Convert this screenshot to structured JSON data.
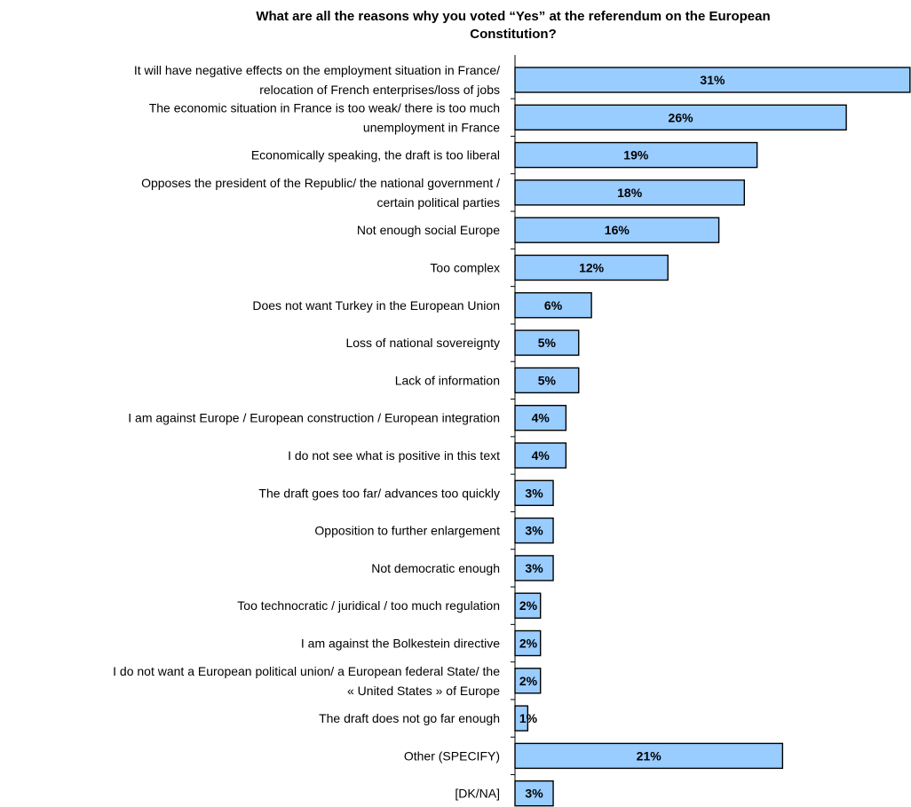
{
  "chart_data": {
    "type": "bar",
    "orientation": "horizontal",
    "title": "What are all the reasons why you voted “Yes” at the referendum on the European Constitution?",
    "title_lines": [
      "What are all the reasons why you voted “Yes” at the referendum on the European",
      "Constitution?"
    ],
    "categories": [
      [
        "It will have negative effects on the employment situation in France/",
        "relocation of French enterprises/loss of jobs"
      ],
      [
        "The economic situation in France is too weak/ there is too much",
        "unemployment in France"
      ],
      [
        "Economically speaking, the draft is too liberal"
      ],
      [
        "Opposes the president of the Republic/ the national government /",
        "certain political parties"
      ],
      [
        "Not enough social Europe"
      ],
      [
        "Too complex"
      ],
      [
        "Does not want Turkey in the European Union"
      ],
      [
        "Loss of national sovereignty"
      ],
      [
        "Lack of information"
      ],
      [
        "I am against Europe / European construction / European integration"
      ],
      [
        "I do not see what is positive in this text"
      ],
      [
        "The draft goes too far/ advances too quickly"
      ],
      [
        "Opposition to further enlargement"
      ],
      [
        "Not democratic enough"
      ],
      [
        "Too technocratic / juridical / too much regulation"
      ],
      [
        "I am against the Bolkestein directive"
      ],
      [
        "I do not want a European political union/ a European federal State/ the",
        "« United States » of Europe"
      ],
      [
        "The draft does not go far enough"
      ],
      [
        "Other (SPECIFY)"
      ],
      [
        "[DK/NA]"
      ]
    ],
    "values": [
      31,
      26,
      19,
      18,
      16,
      12,
      6,
      5,
      5,
      4,
      4,
      3,
      3,
      3,
      2,
      2,
      2,
      1,
      21,
      3
    ],
    "value_labels": [
      "31%",
      "26%",
      "19%",
      "18%",
      "16%",
      "12%",
      "6%",
      "5%",
      "5%",
      "4%",
      "4%",
      "3%",
      "3%",
      "3%",
      "2%",
      "2%",
      "2%",
      "1%",
      "21%",
      "3%"
    ],
    "xlim": [
      0,
      31
    ],
    "grid": false,
    "legend": "none",
    "colors": {
      "bar_fill": "#99ccff",
      "bar_stroke": "#000000"
    }
  }
}
